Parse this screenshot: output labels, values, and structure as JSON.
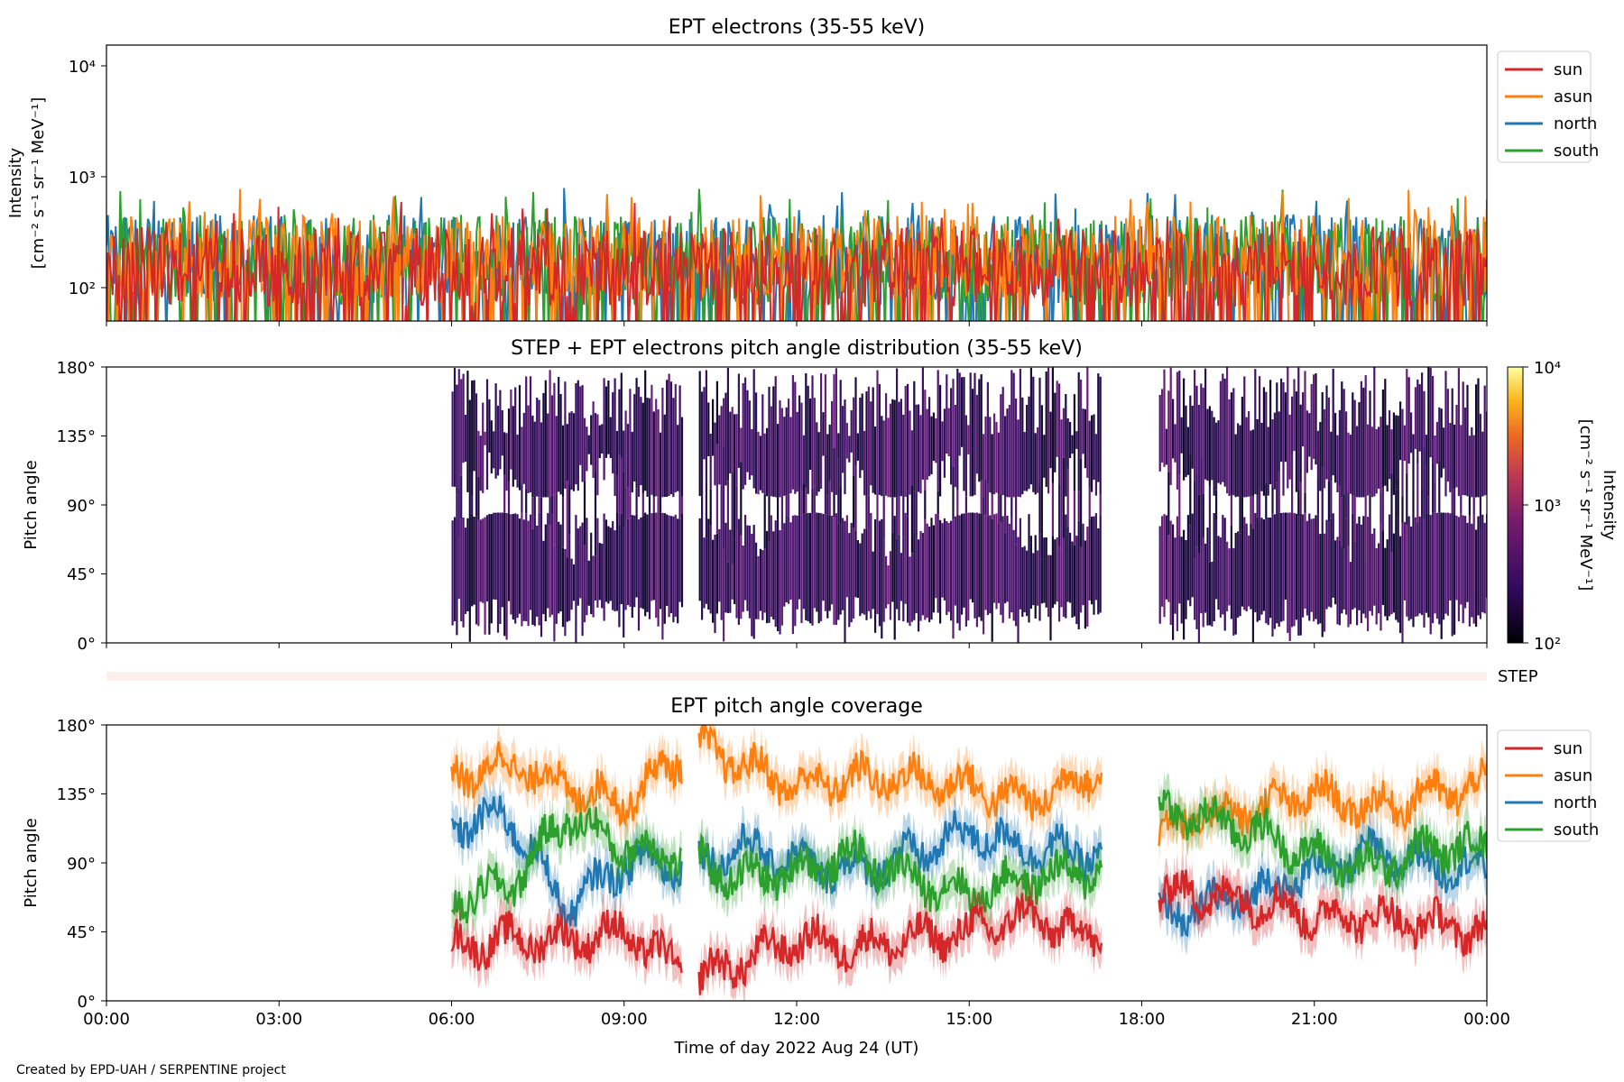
{
  "footer": {
    "credit": "Created by EPD-UAH / SERPENTINE project"
  },
  "xaxis": {
    "ticks": [
      "00:00",
      "03:00",
      "06:00",
      "09:00",
      "12:00",
      "15:00",
      "18:00",
      "21:00",
      "00:00"
    ],
    "label": "Time of day 2022 Aug 24 (UT)"
  },
  "legend": {
    "entries": [
      "sun",
      "asun",
      "north",
      "south"
    ]
  },
  "colors": {
    "sun": "#d62728",
    "asun": "#ff7f0e",
    "north": "#1f77b4",
    "south": "#2ca02c",
    "step_strip": "#fdf0ec"
  },
  "step_label": "STEP",
  "chart_data": [
    {
      "type": "line",
      "title": "EPT electrons (35-55 keV)",
      "ylabel_line1": "Intensity",
      "ylabel_line2": "[cm⁻² s⁻¹ sr⁻¹ MeV⁻¹]",
      "yscale": "log",
      "ylim": [
        50,
        15000
      ],
      "yticks": [
        "10²",
        "10³",
        "10⁴"
      ],
      "xlim_hours": [
        0,
        24
      ],
      "series": [
        {
          "name": "sun",
          "typical_range": [
            50,
            350
          ]
        },
        {
          "name": "asun",
          "typical_range": [
            60,
            450
          ]
        },
        {
          "name": "north",
          "typical_range": [
            50,
            450
          ]
        },
        {
          "name": "south",
          "typical_range": [
            50,
            450
          ]
        }
      ],
      "legend_position": "outside-right"
    },
    {
      "type": "heatmap",
      "title": "STEP + EPT electrons pitch angle distribution (35-55 keV)",
      "ylabel": "Pitch angle",
      "yticks": [
        "0°",
        "45°",
        "90°",
        "135°",
        "180°"
      ],
      "ylim": [
        0,
        180
      ],
      "data_intervals_hours": [
        [
          6.0,
          10.0
        ],
        [
          10.3,
          17.3
        ],
        [
          18.3,
          24.0
        ]
      ],
      "colorbar": {
        "label_line1": "Intensity",
        "label_line2": "[cm⁻² s⁻¹ sr⁻¹ MeV⁻¹]",
        "scale": "log",
        "range": [
          100,
          10000
        ],
        "ticks": [
          "10²",
          "10³",
          "10⁴"
        ]
      }
    },
    {
      "type": "line",
      "title": "EPT pitch angle coverage",
      "ylabel": "Pitch angle",
      "yticks": [
        "0°",
        "45°",
        "90°",
        "135°",
        "180°"
      ],
      "ylim": [
        0,
        180
      ],
      "data_intervals_hours": [
        [
          6.0,
          10.0
        ],
        [
          10.3,
          17.3
        ],
        [
          18.3,
          24.0
        ]
      ],
      "series": [
        {
          "name": "sun",
          "x": [
            6.0,
            7.0,
            8.0,
            9.0,
            10.0,
            10.3,
            11.0,
            12.0,
            13.0,
            14.0,
            15.0,
            16.0,
            17.3,
            18.3,
            19.0,
            20.0,
            21.0,
            22.0,
            23.0,
            24.0
          ],
          "y": [
            35,
            40,
            40,
            45,
            20,
            15,
            25,
            40,
            35,
            40,
            45,
            55,
            40,
            70,
            70,
            65,
            55,
            55,
            50,
            45
          ]
        },
        {
          "name": "asun",
          "x": [
            6.0,
            7.0,
            8.0,
            9.0,
            10.0,
            10.3,
            11.0,
            12.0,
            13.0,
            14.0,
            15.0,
            16.0,
            17.3,
            18.3,
            19.0,
            20.0,
            21.0,
            22.0,
            23.0,
            24.0
          ],
          "y": [
            145,
            155,
            140,
            130,
            160,
            165,
            155,
            140,
            145,
            145,
            140,
            130,
            150,
            110,
            120,
            125,
            135,
            125,
            135,
            140
          ]
        },
        {
          "name": "north",
          "x": [
            6.0,
            7.0,
            8.0,
            9.0,
            10.0,
            10.3,
            11.0,
            12.0,
            13.0,
            14.0,
            15.0,
            16.0,
            17.3,
            18.3,
            19.0,
            20.0,
            21.0,
            22.0,
            23.0,
            24.0
          ],
          "y": [
            115,
            120,
            60,
            90,
            90,
            90,
            100,
            90,
            85,
            95,
            110,
            100,
            95,
            55,
            60,
            70,
            85,
            95,
            90,
            85
          ]
        },
        {
          "name": "south",
          "x": [
            6.0,
            7.0,
            8.0,
            9.0,
            10.0,
            10.3,
            11.0,
            12.0,
            13.0,
            14.0,
            15.0,
            16.0,
            17.3,
            18.3,
            19.0,
            20.0,
            21.0,
            22.0,
            23.0,
            24.0
          ],
          "y": [
            65,
            75,
            120,
            100,
            95,
            90,
            80,
            85,
            95,
            80,
            70,
            80,
            85,
            125,
            120,
            110,
            95,
            85,
            100,
            100
          ]
        }
      ],
      "legend_position": "outside-right"
    }
  ]
}
